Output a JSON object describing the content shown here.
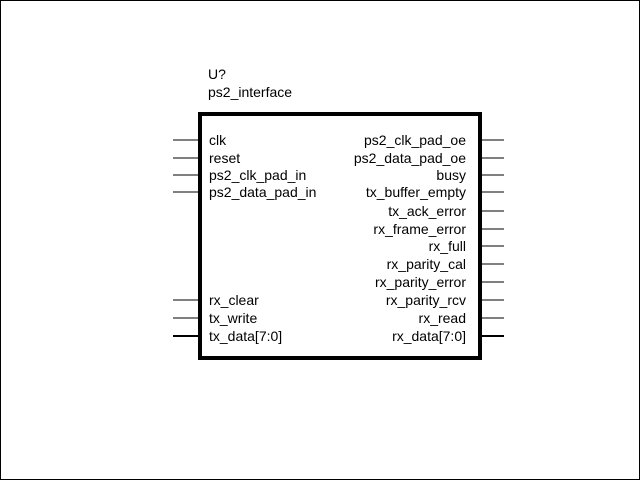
{
  "component": {
    "refdes": "U?",
    "name": "ps2_interface"
  },
  "left_pins": [
    {
      "label": "clk",
      "bus": false
    },
    {
      "label": "reset",
      "bus": false
    },
    {
      "label": "ps2_clk_pad_in",
      "bus": false
    },
    {
      "label": "ps2_data_pad_in",
      "bus": false
    },
    {
      "label": "rx_clear",
      "bus": false
    },
    {
      "label": "tx_write",
      "bus": false
    },
    {
      "label": "tx_data[7:0]",
      "bus": true
    }
  ],
  "right_pins": [
    {
      "label": "ps2_clk_pad_oe",
      "bus": false
    },
    {
      "label": "ps2_data_pad_oe",
      "bus": false
    },
    {
      "label": "busy",
      "bus": false
    },
    {
      "label": "tx_buffer_empty",
      "bus": false
    },
    {
      "label": "tx_ack_error",
      "bus": false
    },
    {
      "label": "rx_frame_error",
      "bus": false
    },
    {
      "label": "rx_full",
      "bus": false
    },
    {
      "label": "rx_parity_cal",
      "bus": false
    },
    {
      "label": "rx_parity_error",
      "bus": false
    },
    {
      "label": "rx_parity_rcv",
      "bus": false
    },
    {
      "label": "rx_read",
      "bus": false
    },
    {
      "label": "rx_data[7:0]",
      "bus": true
    }
  ],
  "colors": {
    "line": "#000000",
    "background": "#ffffff"
  }
}
